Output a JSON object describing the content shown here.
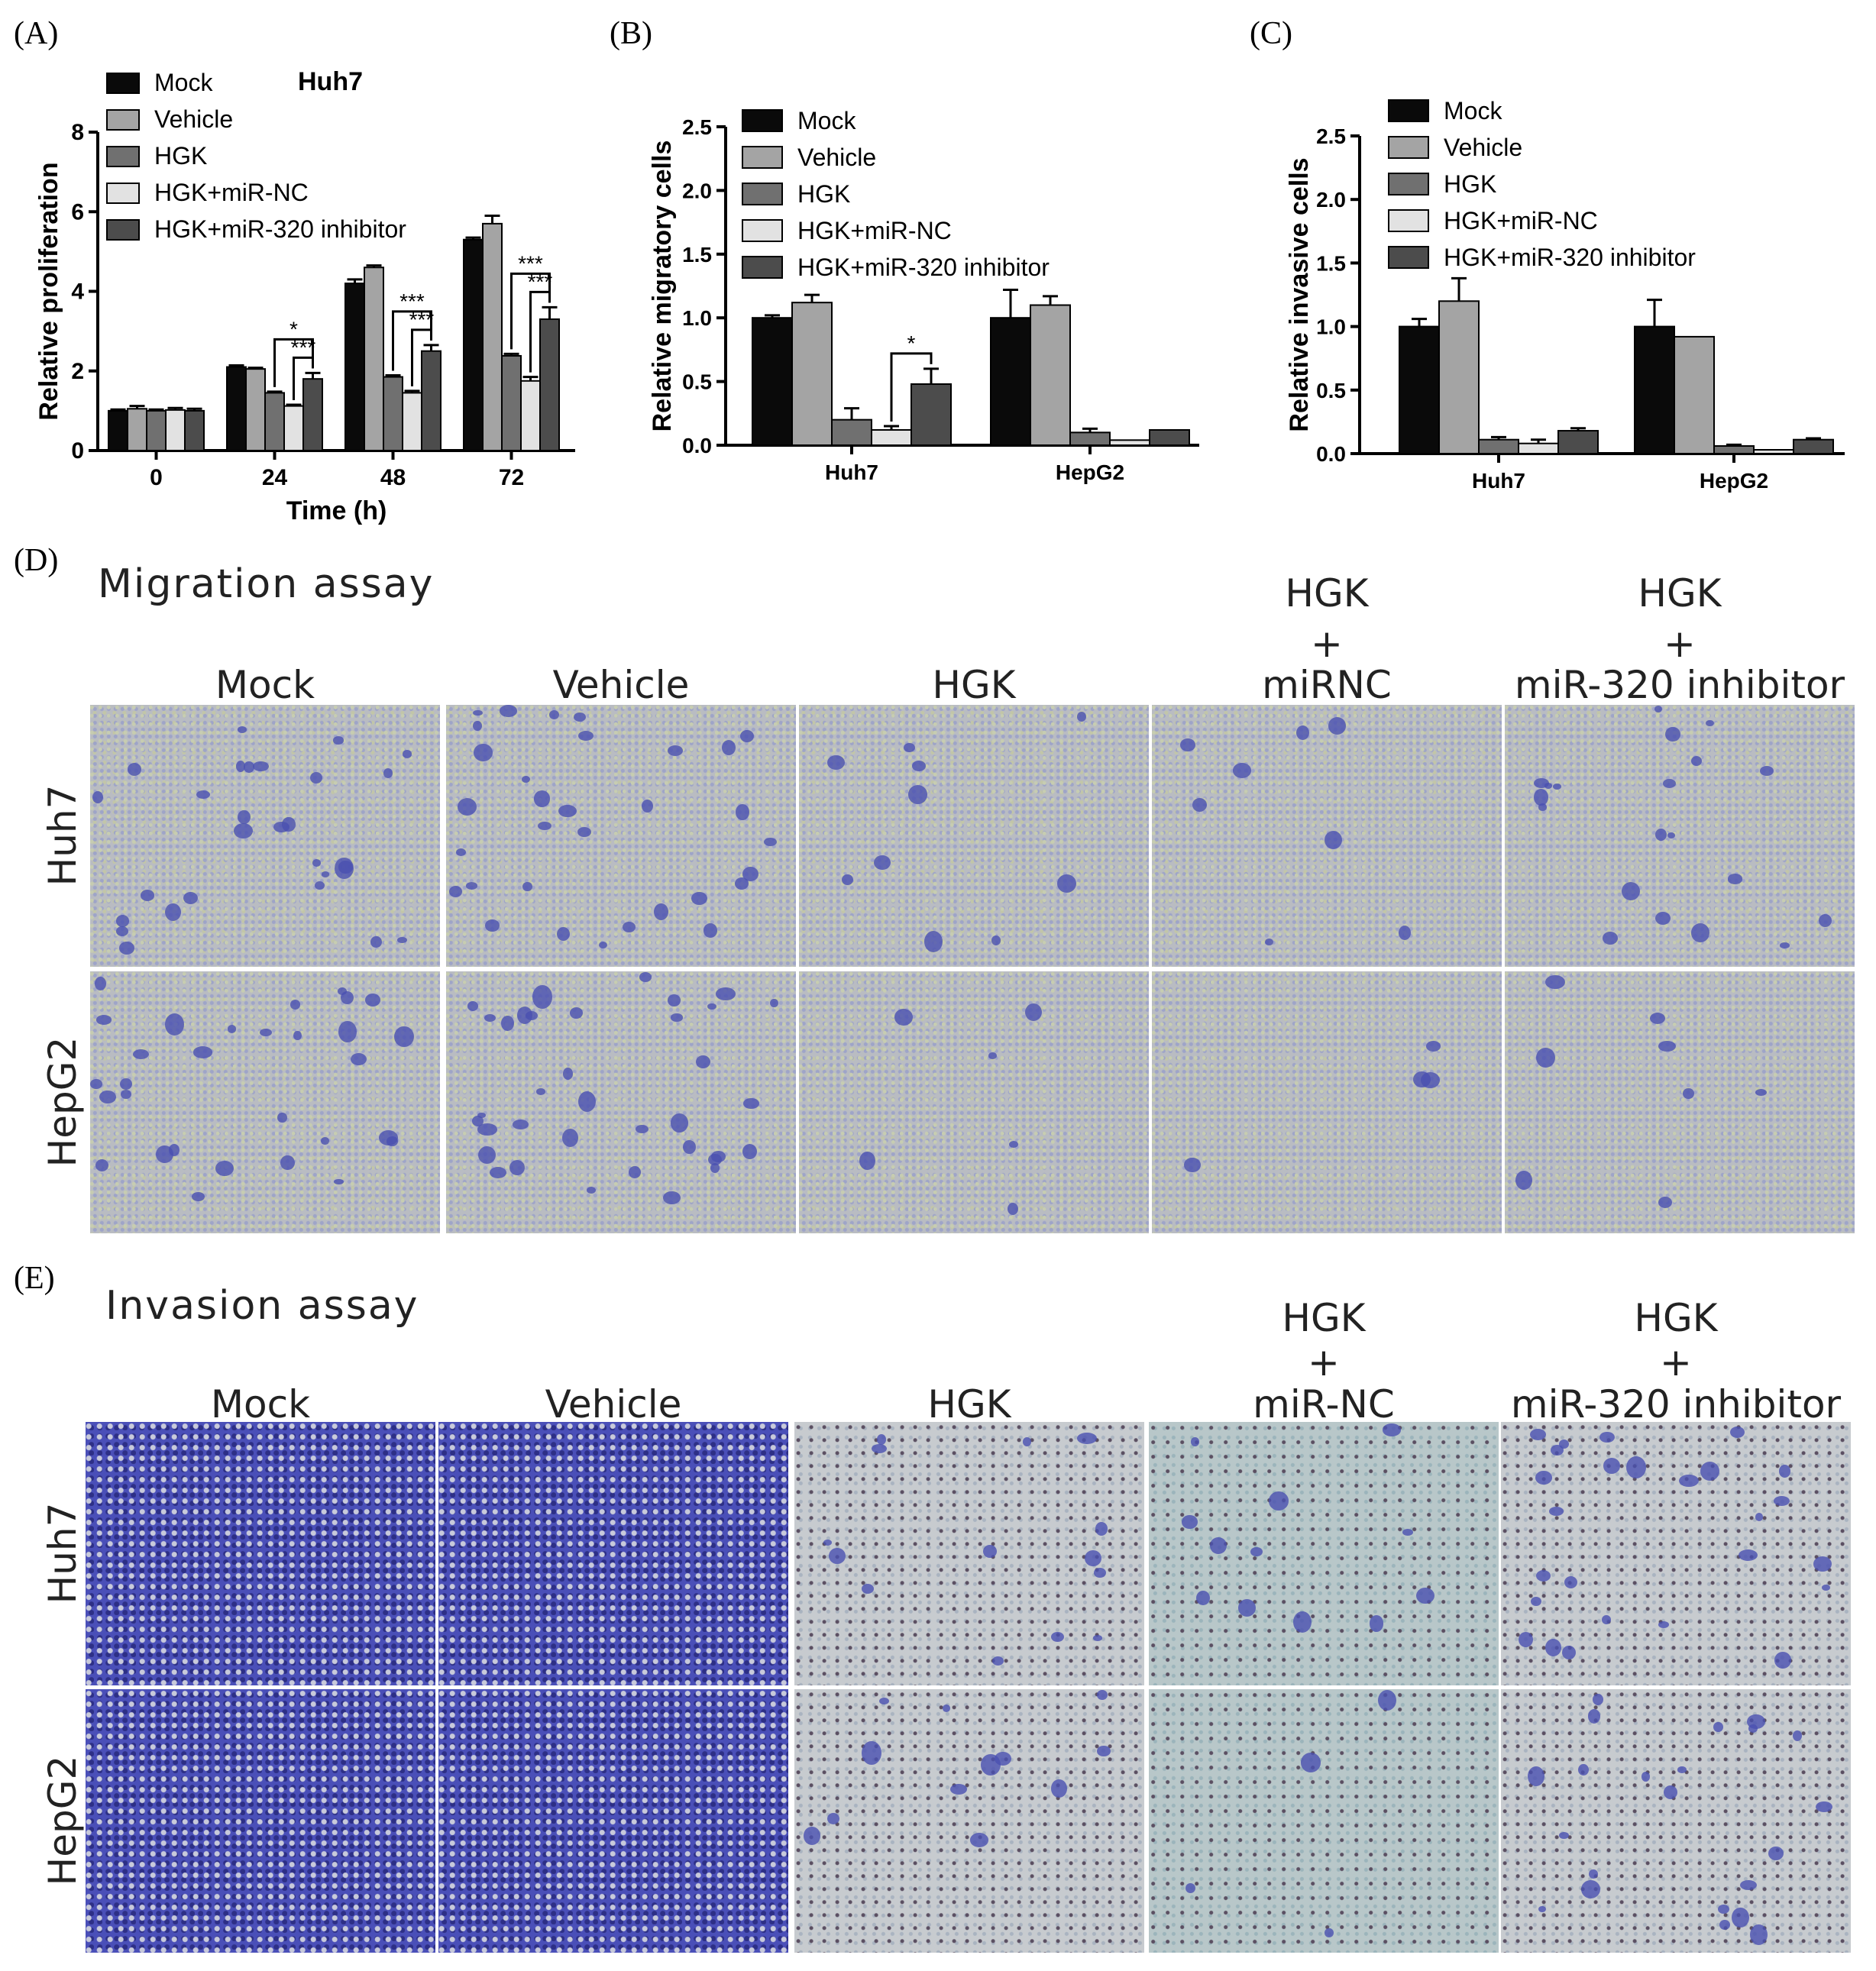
{
  "panels": {
    "A": "(A)",
    "B": "(B)",
    "C": "(C)",
    "D": "(D)",
    "E": "(E)"
  },
  "legend": [
    "Mock",
    "Vehicle",
    "HGK",
    "HGK+miR-NC",
    "HGK+miR-320 inhibitor"
  ],
  "colors": [
    "#0a0a0a",
    "#a4a4a4",
    "#707070",
    "#e2e2e2",
    "#4c4c4c"
  ],
  "chart_data": [
    {
      "type": "bar",
      "title": "Huh7",
      "xlabel": "Time (h)",
      "ylabel": "Relative  proliferation",
      "ylim": [
        0,
        8
      ],
      "yticks": [
        "0",
        "2",
        "4",
        "6",
        "8"
      ],
      "categories": [
        "0",
        "24",
        "48",
        "72"
      ],
      "series": [
        {
          "name": "Mock",
          "values": [
            1.0,
            2.1,
            4.2,
            5.3
          ],
          "err": [
            0.03,
            0.04,
            0.1,
            0.05
          ]
        },
        {
          "name": "Vehicle",
          "values": [
            1.05,
            2.05,
            4.6,
            5.7
          ],
          "err": [
            0.07,
            0.03,
            0.05,
            0.2
          ]
        },
        {
          "name": "HGK",
          "values": [
            1.0,
            1.45,
            1.85,
            2.38
          ],
          "err": [
            0.03,
            0.03,
            0.04,
            0.05
          ]
        },
        {
          "name": "HGK+miR-NC",
          "values": [
            1.02,
            1.12,
            1.45,
            1.75
          ],
          "err": [
            0.05,
            0.03,
            0.05,
            0.1
          ]
        },
        {
          "name": "HGK+miR-320 inhibitor",
          "values": [
            1.0,
            1.8,
            2.5,
            3.3
          ],
          "err": [
            0.05,
            0.15,
            0.15,
            0.3
          ]
        }
      ],
      "sig": [
        {
          "cat": 1,
          "marks": [
            "*",
            "***"
          ]
        },
        {
          "cat": 2,
          "marks": [
            "***",
            "***"
          ]
        },
        {
          "cat": 3,
          "marks": [
            "***",
            "***"
          ]
        }
      ]
    },
    {
      "type": "bar",
      "ylabel": "Relative  migratory cells",
      "ylim": [
        0,
        2.5
      ],
      "yticks": [
        "0.0",
        "0.5",
        "1.0",
        "1.5",
        "2.0",
        "2.5"
      ],
      "categories": [
        "Huh7",
        "HepG2"
      ],
      "series": [
        {
          "name": "Mock",
          "values": [
            1.0,
            1.0
          ],
          "err": [
            0.02,
            0.22
          ]
        },
        {
          "name": "Vehicle",
          "values": [
            1.12,
            1.1
          ],
          "err": [
            0.06,
            0.07
          ]
        },
        {
          "name": "HGK",
          "values": [
            0.2,
            0.1
          ],
          "err": [
            0.09,
            0.03
          ]
        },
        {
          "name": "HGK+miR-NC",
          "values": [
            0.12,
            0.04
          ],
          "err": [
            0.03,
            0.0
          ]
        },
        {
          "name": "HGK+miR-320 inhibitor",
          "values": [
            0.48,
            0.12
          ],
          "err": [
            0.12,
            0.0
          ]
        }
      ],
      "sig": [
        {
          "cat": 0,
          "marks": [
            "*"
          ]
        }
      ]
    },
    {
      "type": "bar",
      "ylabel": "Relative  invasive cells",
      "ylim": [
        0,
        2.5
      ],
      "yticks": [
        "0.0",
        "0.5",
        "1.0",
        "1.5",
        "2.0",
        "2.5"
      ],
      "categories": [
        "Huh7",
        "HepG2"
      ],
      "series": [
        {
          "name": "Mock",
          "values": [
            1.0,
            1.0
          ],
          "err": [
            0.06,
            0.21
          ]
        },
        {
          "name": "Vehicle",
          "values": [
            1.2,
            0.92
          ],
          "err": [
            0.18,
            0.0
          ]
        },
        {
          "name": "HGK",
          "values": [
            0.11,
            0.06
          ],
          "err": [
            0.02,
            0.01
          ]
        },
        {
          "name": "HGK+miR-NC",
          "values": [
            0.08,
            0.03
          ],
          "err": [
            0.03,
            0.0
          ]
        },
        {
          "name": "HGK+miR-320 inhibitor",
          "values": [
            0.18,
            0.11
          ],
          "err": [
            0.02,
            0.01
          ]
        }
      ]
    }
  ],
  "migration": {
    "title": "Migration assay",
    "columns": [
      {
        "top": "",
        "mid": "",
        "bottom": "Mock"
      },
      {
        "top": "",
        "mid": "",
        "bottom": "Vehicle"
      },
      {
        "top": "",
        "mid": "",
        "bottom": "HGK"
      },
      {
        "top": "HGK",
        "mid": "+",
        "bottom": "miRNC"
      },
      {
        "top": "HGK",
        "mid": "+",
        "bottom": "miR-320 inhibitor"
      }
    ],
    "rows": [
      "Huh7",
      "HepG2"
    ]
  },
  "invasion": {
    "title": "Invasion assay",
    "columns": [
      {
        "top": "",
        "mid": "",
        "bottom": "Mock"
      },
      {
        "top": "",
        "mid": "",
        "bottom": "Vehicle"
      },
      {
        "top": "",
        "mid": "",
        "bottom": "HGK"
      },
      {
        "top": "HGK",
        "mid": "+",
        "bottom": "miR-NC"
      },
      {
        "top": "HGK",
        "mid": "+",
        "bottom": "miR-320 inhibitor"
      }
    ],
    "rows": [
      "Huh7",
      "HepG2"
    ]
  }
}
